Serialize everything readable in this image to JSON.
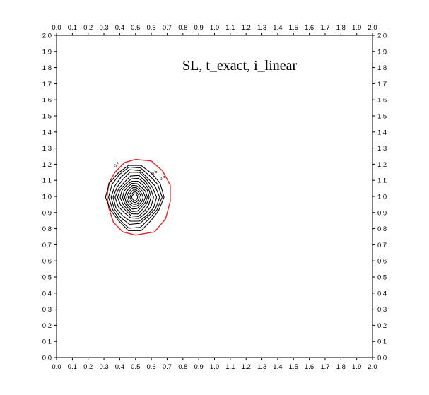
{
  "chart_data": {
    "type": "contour",
    "title": "SL, t_exact, i_linear",
    "xlabel": "",
    "ylabel": "",
    "xlim": [
      0.0,
      2.0
    ],
    "ylim": [
      0.0,
      2.0
    ],
    "x_ticks": [
      "0.0",
      "0.1",
      "0.2",
      "0.3",
      "0.4",
      "0.5",
      "0.6",
      "0.7",
      "0.8",
      "0.9",
      "1.0",
      "1.1",
      "1.2",
      "1.3",
      "1.4",
      "1.5",
      "1.6",
      "1.7",
      "1.8",
      "1.9",
      "2.0"
    ],
    "y_ticks": [
      "0.0",
      "0.1",
      "0.2",
      "0.3",
      "0.4",
      "0.5",
      "0.6",
      "0.7",
      "0.8",
      "0.9",
      "1.0",
      "1.1",
      "1.2",
      "1.3",
      "1.4",
      "1.5",
      "1.6",
      "1.7",
      "1.8",
      "1.9",
      "2.0"
    ],
    "tick_axes": [
      "bottom",
      "top",
      "left",
      "right"
    ],
    "grid": false,
    "legend": "none",
    "colors": {
      "frame": "#000000",
      "contour": "#000000",
      "reference_contour": "#e0262b"
    },
    "reference_contour": {
      "level": "0.5",
      "points": [
        [
          0.5,
          1.23
        ],
        [
          0.6,
          1.22
        ],
        [
          0.67,
          1.16
        ],
        [
          0.72,
          1.07
        ],
        [
          0.72,
          0.97
        ],
        [
          0.69,
          0.86
        ],
        [
          0.62,
          0.78
        ],
        [
          0.5,
          0.76
        ],
        [
          0.42,
          0.78
        ],
        [
          0.36,
          0.84
        ],
        [
          0.33,
          0.93
        ],
        [
          0.32,
          1.0
        ],
        [
          0.33,
          1.08
        ],
        [
          0.37,
          1.15
        ],
        [
          0.43,
          1.21
        ],
        [
          0.5,
          1.23
        ]
      ]
    },
    "contours": [
      {
        "level": "0.5",
        "center": [
          0.495,
          0.995
        ],
        "rx": 0.175,
        "ry": 0.2
      },
      {
        "level": "",
        "center": [
          0.495,
          0.995
        ],
        "rx": 0.16,
        "ry": 0.185
      },
      {
        "level": "",
        "center": [
          0.495,
          0.995
        ],
        "rx": 0.145,
        "ry": 0.165
      },
      {
        "level": "",
        "center": [
          0.495,
          0.995
        ],
        "rx": 0.13,
        "ry": 0.15
      },
      {
        "level": "",
        "center": [
          0.495,
          0.995
        ],
        "rx": 0.115,
        "ry": 0.13
      },
      {
        "level": "",
        "center": [
          0.495,
          0.995
        ],
        "rx": 0.1,
        "ry": 0.115
      },
      {
        "level": "",
        "center": [
          0.495,
          0.995
        ],
        "rx": 0.087,
        "ry": 0.1
      },
      {
        "level": "",
        "center": [
          0.495,
          0.995
        ],
        "rx": 0.074,
        "ry": 0.085
      },
      {
        "level": "",
        "center": [
          0.495,
          0.995
        ],
        "rx": 0.062,
        "ry": 0.071
      },
      {
        "level": "",
        "center": [
          0.495,
          0.995
        ],
        "rx": 0.05,
        "ry": 0.057
      },
      {
        "level": "",
        "center": [
          0.495,
          0.995
        ],
        "rx": 0.039,
        "ry": 0.044
      },
      {
        "level": "",
        "center": [
          0.495,
          0.995
        ],
        "rx": 0.028,
        "ry": 0.032
      },
      {
        "level": "",
        "center": [
          0.495,
          0.995
        ],
        "rx": 0.018,
        "ry": 0.021
      }
    ],
    "contour_labels": [
      {
        "text": "0.5",
        "x": 0.37,
        "y": 1.18
      },
      {
        "text": "0.5",
        "x": 0.61,
        "y": 1.13
      },
      {
        "text": "0.5",
        "x": 0.66,
        "y": 1.1
      }
    ]
  }
}
